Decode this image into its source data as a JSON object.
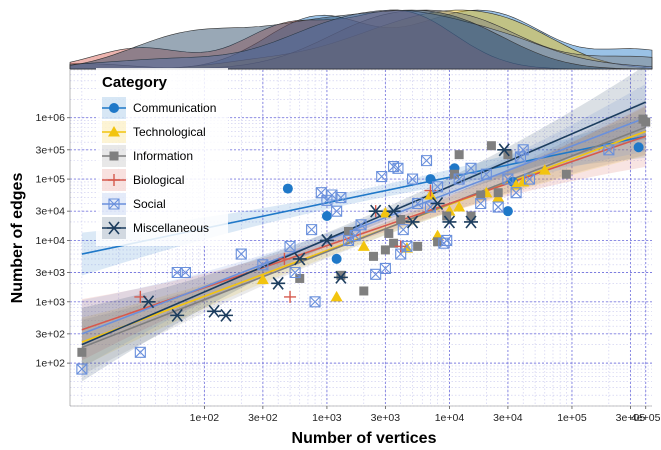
{
  "chart_data": {
    "type": "scatter",
    "xlabel": "Number of vertices",
    "ylabel": "Number of edges",
    "x_scale": "log10",
    "y_scale": "log10",
    "xlim": [
      8,
      450000
    ],
    "ylim": [
      20,
      6000000
    ],
    "x_ticks": [
      100,
      300,
      1000,
      3000,
      10000,
      30000,
      100000,
      300000,
      400000
    ],
    "x_tick_labels": [
      "1e+02",
      "3e+02",
      "1e+03",
      "3e+03",
      "1e+04",
      "3e+04",
      "1e+05",
      "3e+05",
      "4e+05"
    ],
    "y_ticks": [
      100,
      300,
      1000,
      3000,
      10000,
      30000,
      100000,
      300000,
      1000000
    ],
    "y_tick_labels": [
      "1e+02",
      "3e+02",
      "1e+03",
      "3e+03",
      "1e+04",
      "3e+04",
      "1e+05",
      "3e+05",
      "1e+06"
    ],
    "grid": true,
    "legend": {
      "title": "Category",
      "placement": "top-left"
    },
    "marginal_density": "top",
    "series": [
      {
        "name": "Communication",
        "color": "#1f78c8",
        "marker": "circle",
        "fit": [
          [
            10,
            6000
          ],
          [
            400000,
            500000
          ]
        ],
        "points": [
          [
            480,
            70000
          ],
          [
            1000,
            25000
          ],
          [
            1200,
            5000
          ],
          [
            7000,
            100000
          ],
          [
            11000,
            150000
          ],
          [
            30000,
            30000
          ],
          [
            33000,
            90000
          ],
          [
            350000,
            330000
          ]
        ]
      },
      {
        "name": "Technological",
        "color": "#f2c40f",
        "marker": "triangle",
        "fit": [
          [
            10,
            220
          ],
          [
            400000,
            600000
          ]
        ],
        "points": [
          [
            300,
            2300
          ],
          [
            1200,
            1200
          ],
          [
            2000,
            8000
          ],
          [
            3000,
            28000
          ],
          [
            4500,
            7500
          ],
          [
            7000,
            55000
          ],
          [
            8000,
            12000
          ],
          [
            10000,
            30000
          ],
          [
            12000,
            35000
          ],
          [
            20000,
            60000
          ],
          [
            25000,
            50000
          ],
          [
            35000,
            80000
          ],
          [
            40000,
            90000
          ],
          [
            60000,
            140000
          ]
        ]
      },
      {
        "name": "Information",
        "color": "#7f7f7f",
        "marker": "square",
        "fit": [
          [
            10,
            180
          ],
          [
            400000,
            700000
          ]
        ],
        "points": [
          [
            10,
            150
          ],
          [
            600,
            2400
          ],
          [
            1300,
            2700
          ],
          [
            1500,
            14000
          ],
          [
            2000,
            1500
          ],
          [
            2400,
            5500
          ],
          [
            3000,
            7000
          ],
          [
            3200,
            13000
          ],
          [
            3500,
            9000
          ],
          [
            4000,
            22000
          ],
          [
            5500,
            8000
          ],
          [
            8000,
            9500
          ],
          [
            9500,
            25000
          ],
          [
            11000,
            120000
          ],
          [
            12000,
            250000
          ],
          [
            15000,
            25000
          ],
          [
            18000,
            55000
          ],
          [
            22000,
            350000
          ],
          [
            25000,
            60000
          ],
          [
            30000,
            250000
          ],
          [
            90000,
            120000
          ],
          [
            380000,
            950000
          ],
          [
            400000,
            850000
          ]
        ]
      },
      {
        "name": "Biological",
        "color": "#d6594d",
        "marker": "plus",
        "fit": [
          [
            10,
            350
          ],
          [
            400000,
            500000
          ]
        ],
        "points": [
          [
            30,
            1200
          ],
          [
            450,
            5000
          ],
          [
            500,
            1200
          ],
          [
            2500,
            30000
          ],
          [
            4000,
            8000
          ],
          [
            7000,
            65000
          ]
        ]
      },
      {
        "name": "Social",
        "color": "#6a90dc",
        "marker": "square-x",
        "fit": [
          [
            10,
            300
          ],
          [
            400000,
            1000000
          ]
        ],
        "points": [
          [
            10,
            80
          ],
          [
            30,
            150
          ],
          [
            60,
            3000
          ],
          [
            70,
            3000
          ],
          [
            200,
            6000
          ],
          [
            300,
            4000
          ],
          [
            500,
            8000
          ],
          [
            550,
            3000
          ],
          [
            750,
            15000
          ],
          [
            800,
            1000
          ],
          [
            900,
            60000
          ],
          [
            1000,
            45000
          ],
          [
            1100,
            55000
          ],
          [
            1200,
            30000
          ],
          [
            1300,
            50000
          ],
          [
            1500,
            10000
          ],
          [
            1700,
            12000
          ],
          [
            1900,
            18000
          ],
          [
            2500,
            2800
          ],
          [
            2800,
            110000
          ],
          [
            3000,
            3500
          ],
          [
            3500,
            160000
          ],
          [
            3800,
            150000
          ],
          [
            4000,
            6000
          ],
          [
            4200,
            15000
          ],
          [
            4500,
            8000
          ],
          [
            5000,
            100000
          ],
          [
            5500,
            40000
          ],
          [
            6500,
            200000
          ],
          [
            7000,
            35000
          ],
          [
            8000,
            75000
          ],
          [
            9000,
            9000
          ],
          [
            9500,
            10000
          ],
          [
            12000,
            100000
          ],
          [
            15000,
            150000
          ],
          [
            18000,
            40000
          ],
          [
            20000,
            120000
          ],
          [
            25000,
            35000
          ],
          [
            30000,
            100000
          ],
          [
            35000,
            60000
          ],
          [
            38000,
            230000
          ],
          [
            40000,
            300000
          ],
          [
            45000,
            100000
          ],
          [
            200000,
            300000
          ]
        ]
      },
      {
        "name": "Miscellaneous",
        "color": "#1c3d5e",
        "marker": "asterisk",
        "fit": [
          [
            10,
            200
          ],
          [
            400000,
            1800000
          ]
        ],
        "points": [
          [
            35,
            1000
          ],
          [
            60,
            600
          ],
          [
            120,
            700
          ],
          [
            150,
            600
          ],
          [
            400,
            2000
          ],
          [
            600,
            5000
          ],
          [
            1000,
            10000
          ],
          [
            1300,
            2500
          ],
          [
            2500,
            30000
          ],
          [
            3500,
            30000
          ],
          [
            5000,
            20000
          ],
          [
            8000,
            40000
          ],
          [
            10000,
            20000
          ],
          [
            15000,
            20000
          ],
          [
            28000,
            300000
          ]
        ]
      }
    ]
  }
}
